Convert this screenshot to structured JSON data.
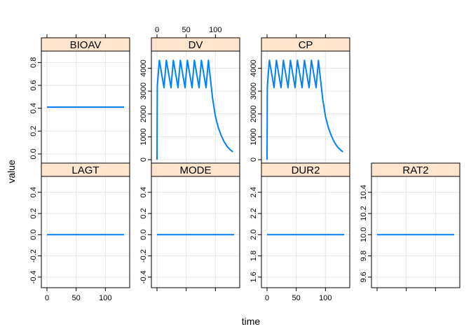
{
  "chart_data": {
    "type": "line",
    "layout": "lattice",
    "xlabel": "time",
    "ylabel": "value",
    "x_range": [
      0,
      132
    ],
    "x_ticks": [
      0,
      50,
      100
    ],
    "line_color": "#0080ff",
    "strip_color": "#ffe5cc",
    "grid": true,
    "panels": [
      {
        "name": "BIOAV",
        "row": 0,
        "col": 0,
        "ylim": [
          -0.08,
          0.9
        ],
        "yticks": [
          0.0,
          0.2,
          0.4,
          0.6,
          0.8
        ],
        "ytick_labels": [
          "0.0",
          "0.2",
          "0.4",
          "0.6",
          "0.8"
        ],
        "y_axis_side": "left",
        "x_axis_side": "top",
        "x_tick_labels_shown": false,
        "series": {
          "x": [
            0,
            132
          ],
          "y": [
            0.41,
            0.41
          ]
        }
      },
      {
        "name": "DV",
        "row": 0,
        "col": 1,
        "ylim": [
          -150,
          4750
        ],
        "yticks": [
          0,
          1000,
          2000,
          3000,
          4000
        ],
        "ytick_labels": [
          "0",
          "1000",
          "2000",
          "3000",
          "4000"
        ],
        "y_axis_side": "left",
        "x_axis_side": "top",
        "x_tick_labels_shown": true,
        "series": {
          "x": [
            0,
            0.5,
            4,
            12,
            12.5,
            16,
            24,
            24.5,
            28,
            36,
            36.5,
            40,
            48,
            48.5,
            52,
            60,
            60.5,
            64,
            72,
            72.5,
            76,
            84,
            84.5,
            88,
            95,
            100,
            105,
            110,
            115,
            120,
            125,
            130
          ],
          "y": [
            0,
            3200,
            4350,
            3150,
            3300,
            4350,
            3150,
            3300,
            4350,
            3150,
            3300,
            4350,
            3150,
            3300,
            4350,
            3150,
            3300,
            4350,
            3150,
            3300,
            4350,
            3150,
            3300,
            4350,
            2700,
            1900,
            1400,
            1050,
            780,
            580,
            440,
            340
          ]
        }
      },
      {
        "name": "CP",
        "row": 0,
        "col": 2,
        "ylim": [
          -150,
          4750
        ],
        "yticks": [
          0,
          1000,
          2000,
          3000,
          4000
        ],
        "ytick_labels": [
          "0",
          "1000",
          "2000",
          "3000",
          "4000"
        ],
        "y_axis_side": "left",
        "x_axis_side": "top",
        "x_tick_labels_shown": false,
        "series": {
          "x": [
            0,
            0.5,
            4,
            12,
            12.5,
            16,
            24,
            24.5,
            28,
            36,
            36.5,
            40,
            48,
            48.5,
            52,
            60,
            60.5,
            64,
            72,
            72.5,
            76,
            84,
            84.5,
            88,
            95,
            100,
            105,
            110,
            115,
            120,
            125,
            130
          ],
          "y": [
            0,
            3200,
            4350,
            3150,
            3300,
            4350,
            3150,
            3300,
            4350,
            3150,
            3300,
            4350,
            3150,
            3300,
            4350,
            3150,
            3300,
            4350,
            3150,
            3300,
            4350,
            3150,
            3300,
            4350,
            2700,
            1900,
            1400,
            1050,
            780,
            580,
            440,
            340
          ]
        }
      },
      {
        "name": "LAGT",
        "row": 1,
        "col": 0,
        "ylim": [
          -0.5,
          0.55
        ],
        "yticks": [
          -0.4,
          -0.2,
          0.0,
          0.2,
          0.4
        ],
        "ytick_labels": [
          "-0.4",
          "-0.2",
          "0.0",
          "0.2",
          "0.4"
        ],
        "y_axis_side": "left",
        "x_axis_side": "bottom",
        "x_tick_labels_shown": true,
        "series": {
          "x": [
            0,
            132
          ],
          "y": [
            0,
            0
          ]
        }
      },
      {
        "name": "MODE",
        "row": 1,
        "col": 1,
        "ylim": [
          -0.5,
          0.55
        ],
        "yticks": [
          -0.4,
          -0.2,
          0.0,
          0.2,
          0.4
        ],
        "ytick_labels": [
          "-0.4",
          "-0.2",
          "0.0",
          "0.2",
          "0.4"
        ],
        "y_axis_side": "left",
        "x_axis_side": "bottom",
        "x_tick_labels_shown": false,
        "series": {
          "x": [
            0,
            132
          ],
          "y": [
            0,
            0
          ]
        }
      },
      {
        "name": "DUR2",
        "row": 1,
        "col": 2,
        "ylim": [
          1.5,
          2.55
        ],
        "yticks": [
          1.6,
          1.8,
          2.0,
          2.2,
          2.4
        ],
        "ytick_labels": [
          "1.6",
          "1.8",
          "2.0",
          "2.2",
          "2.4"
        ],
        "y_axis_side": "left",
        "x_axis_side": "bottom",
        "x_tick_labels_shown": true,
        "series": {
          "x": [
            0,
            132
          ],
          "y": [
            2,
            2
          ]
        }
      },
      {
        "name": "RAT2",
        "row": 1,
        "col": 3,
        "ylim": [
          9.5,
          10.55
        ],
        "yticks": [
          9.6,
          9.8,
          10.0,
          10.2,
          10.4
        ],
        "ytick_labels": [
          "9.6",
          "9.8",
          "10.0",
          "10.2",
          "10.4"
        ],
        "y_axis_side": "left",
        "x_axis_side": "bottom",
        "x_tick_labels_shown": false,
        "series": {
          "x": [
            0,
            132
          ],
          "y": [
            10,
            10
          ]
        }
      }
    ]
  }
}
